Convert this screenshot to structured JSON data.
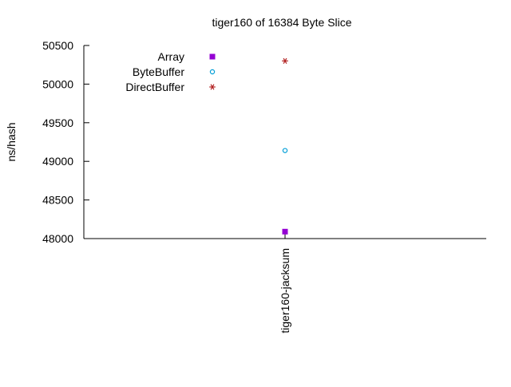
{
  "chart_data": {
    "type": "scatter",
    "title": "tiger160 of 16384 Byte Slice",
    "xlabel": "",
    "ylabel": "ns/hash",
    "categories": [
      "tiger160-jacksum"
    ],
    "ylim": [
      48000,
      50500
    ],
    "yticks": [
      48000,
      48500,
      49000,
      49500,
      50000,
      50500
    ],
    "grid": false,
    "legend_position": "top-left",
    "series": [
      {
        "name": "Array",
        "marker": "filled-square",
        "color": "#9400d3",
        "values": [
          48090
        ]
      },
      {
        "name": "ByteBuffer",
        "marker": "open-circle",
        "color": "#009ed7",
        "values": [
          49140
        ]
      },
      {
        "name": "DirectBuffer",
        "marker": "asterisk",
        "color": "#b22222",
        "values": [
          50300
        ]
      }
    ]
  }
}
